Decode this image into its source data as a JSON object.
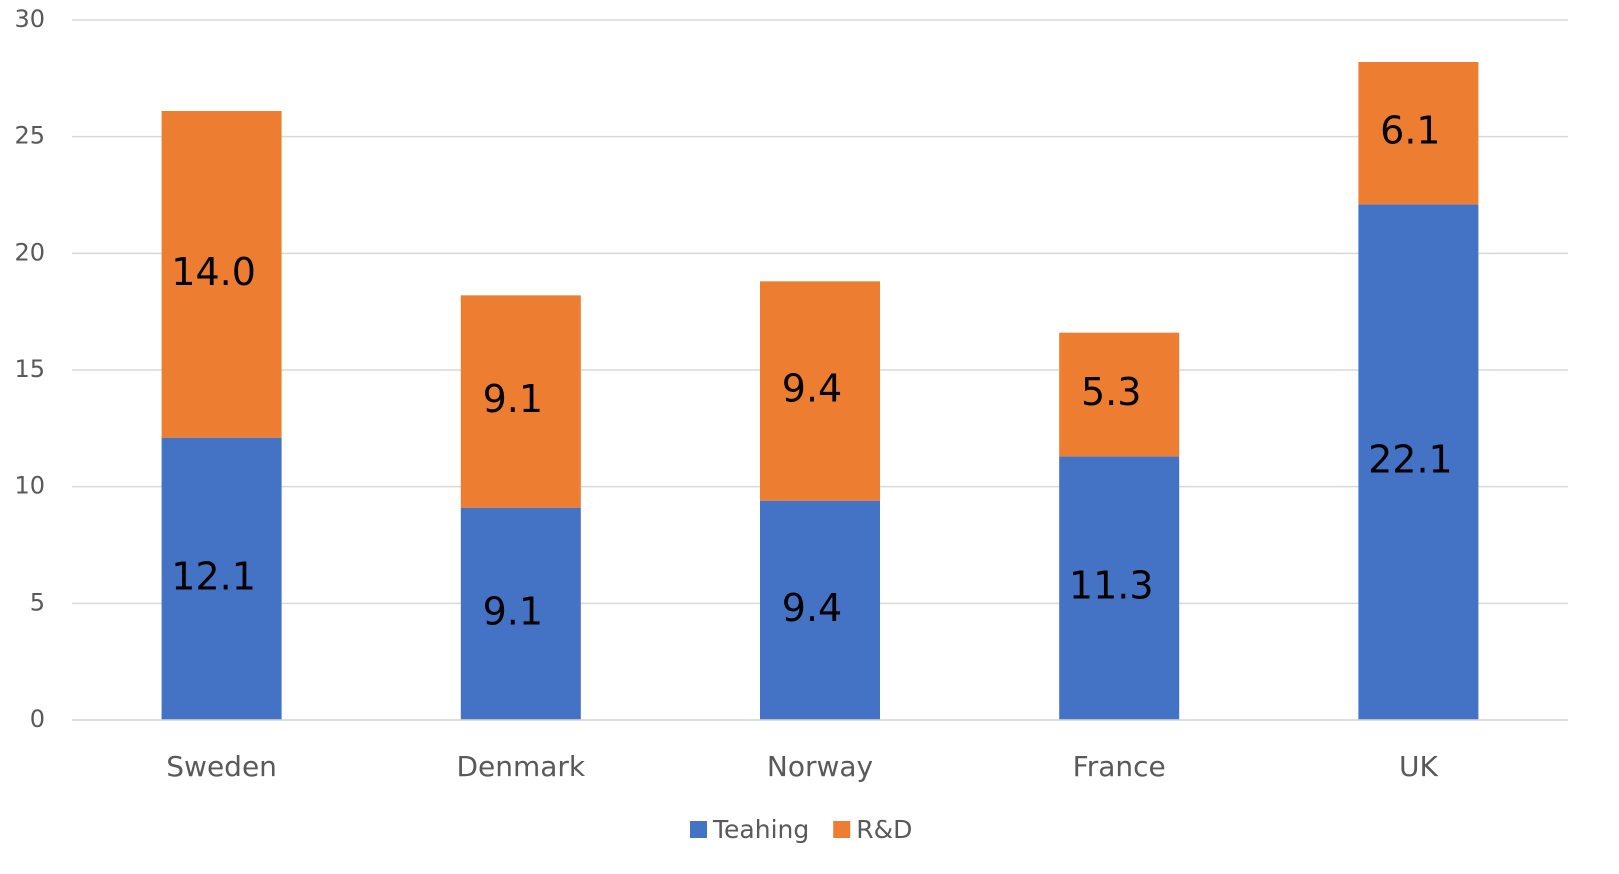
{
  "chart_data": {
    "type": "stacked_bar",
    "categories": [
      "Sweden",
      "Denmark",
      "Norway",
      "France",
      "UK"
    ],
    "series": [
      {
        "name": "Teahing",
        "color": "#4472c4",
        "values": [
          12.1,
          9.1,
          9.4,
          11.3,
          22.1
        ],
        "value_labels": [
          "12.1",
          "9.1",
          "9.4",
          "11.3",
          "22.1"
        ]
      },
      {
        "name": "R&D",
        "color": "#ed7d31",
        "values": [
          14.0,
          9.1,
          9.4,
          5.3,
          6.1
        ],
        "value_labels": [
          "14.0",
          "9.1",
          "9.4",
          "5.3",
          "6.1"
        ]
      }
    ],
    "ylim": [
      0,
      30
    ],
    "yticks": [
      0,
      5,
      10,
      15,
      20,
      25,
      30
    ],
    "grid": true,
    "legend": "bottom"
  }
}
